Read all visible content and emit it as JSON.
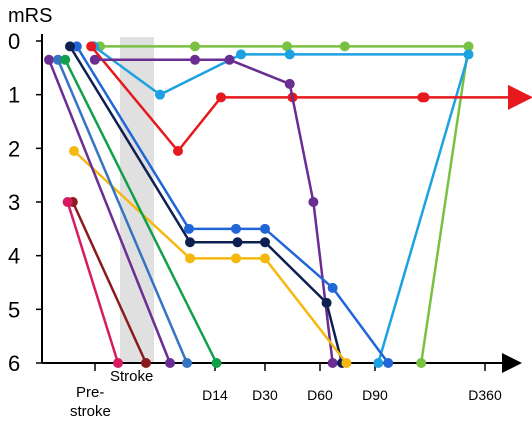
{
  "chart_data": {
    "type": "line",
    "ylabel": "mRS",
    "ylim": [
      0,
      6
    ],
    "y_inverted": true,
    "yticks": [
      "0",
      "1",
      "2",
      "3",
      "4",
      "5",
      "6"
    ],
    "xticks": [
      "D14",
      "D30",
      "D60",
      "D90",
      "D360"
    ],
    "annotations": {
      "prestroke_line1": "Pre-",
      "prestroke_line2": "stroke",
      "stroke_band": "Stroke"
    },
    "stroke_band_color": "#e0e0e0",
    "series": [
      {
        "color": "#7ac143",
        "points": [
          [
            0.75,
            0.1
          ],
          [
            1.85,
            0.1
          ],
          [
            3.4,
            0.1
          ],
          [
            4.45,
            0.1
          ],
          [
            5.85,
            0.1
          ],
          [
            7.42,
            6
          ]
        ]
      },
      {
        "color": "#1da1e2",
        "points": [
          [
            0.6,
            0.1
          ],
          [
            1.5,
            1.0
          ],
          [
            2.52,
            0.25
          ],
          [
            3.45,
            0.25
          ],
          [
            5.85,
            0.25
          ],
          [
            7.03,
            6
          ]
        ]
      },
      {
        "color": "#e6191e",
        "points": [
          [
            0.53,
            0.1
          ],
          [
            1.68,
            2.05
          ],
          [
            2.12,
            1.05
          ],
          [
            3.5,
            1.05
          ],
          [
            5.43,
            1.05
          ],
          [
            8.45,
            1.05
          ]
        ]
      },
      {
        "color": "#6a2d91",
        "points": [
          [
            0.62,
            0.35
          ],
          [
            1.85,
            0.35
          ],
          [
            2.29,
            0.35
          ],
          [
            3.45,
            0.8
          ],
          [
            3.88,
            3.0
          ],
          [
            4.23,
            6
          ]
        ]
      },
      {
        "color": "#2166d9",
        "points": [
          [
            0.17,
            0.1
          ],
          [
            1.79,
            3.5
          ],
          [
            2.42,
            3.5
          ],
          [
            3.0,
            3.5
          ],
          [
            4.23,
            4.6
          ],
          [
            6.12,
            6
          ]
        ]
      },
      {
        "color": "#0e1f52",
        "points": [
          [
            0.0,
            0.1
          ],
          [
            1.8,
            3.75
          ],
          [
            2.45,
            3.75
          ],
          [
            3.0,
            3.75
          ],
          [
            4.12,
            4.88
          ],
          [
            4.4,
            6
          ]
        ]
      },
      {
        "color": "#f5b80f",
        "points": [
          [
            0.1,
            2.05
          ],
          [
            1.8,
            4.05
          ],
          [
            2.42,
            4.05
          ],
          [
            3.0,
            4.05
          ],
          [
            4.48,
            6
          ]
        ]
      },
      {
        "color": "#6a2d91",
        "points": [
          [
            -0.35,
            0.35
          ],
          [
            1.6,
            6
          ]
        ]
      },
      {
        "color": "#3574c2",
        "points": [
          [
            -0.2,
            0.35
          ],
          [
            1.77,
            6
          ]
        ]
      },
      {
        "color": "#10a04a",
        "points": [
          [
            -0.08,
            0.35
          ],
          [
            2.03,
            6
          ]
        ]
      },
      {
        "color": "#8b1a1f",
        "points": [
          [
            0.07,
            3.0
          ],
          [
            1.36,
            6
          ]
        ]
      },
      {
        "color": "#d81b60",
        "points": [
          [
            -0.04,
            3.0
          ],
          [
            1.08,
            6
          ]
        ]
      }
    ]
  }
}
